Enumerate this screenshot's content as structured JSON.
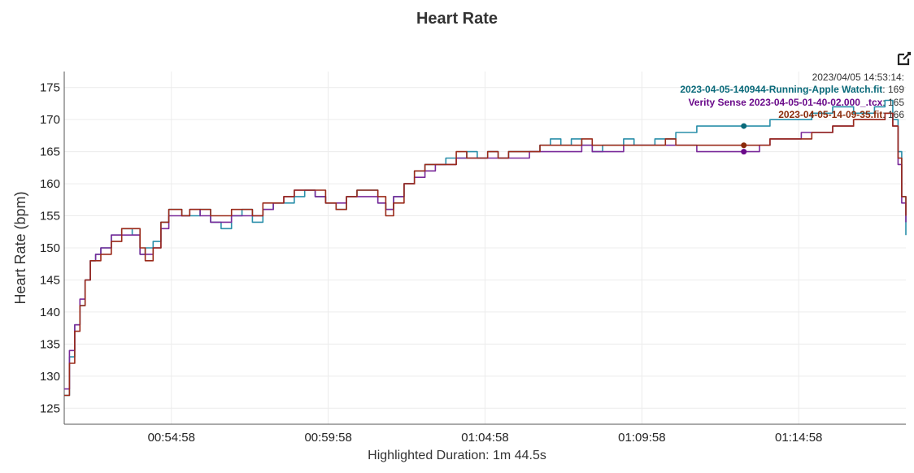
{
  "chart_data": {
    "type": "line",
    "title": "Heart Rate",
    "ylabel": "Heart Rate (bpm)",
    "xlabel": "Highlighted Duration: 1m 44.5s",
    "xlim": [
      0,
      1610
    ],
    "ylim": [
      122.5,
      177.5
    ],
    "x_ticks": [
      "00:54:58",
      "00:59:58",
      "01:04:58",
      "01:09:58",
      "01:14:58"
    ],
    "x_tick_positions": [
      205,
      505,
      805,
      1105,
      1405
    ],
    "y_ticks": [
      125,
      130,
      135,
      140,
      145,
      150,
      155,
      160,
      165,
      170,
      175
    ],
    "grid": true,
    "hover": {
      "timestamp": "2023/04/05 14:53:14:",
      "x": 1300,
      "entries": [
        {
          "name": "2023-04-05-140944-Running-Apple Watch.fit",
          "value": "169",
          "color": "#0a6a7a"
        },
        {
          "name": "Verity Sense 2023-04-05-01-40-02.000_.tcx",
          "value": "165",
          "color": "#6a0a8a"
        },
        {
          "name": "2023-04-05-14-09-35.fit",
          "value": "166",
          "color": "#8a2a0a"
        }
      ]
    },
    "series": [
      {
        "name": "2023-04-05-140944-Running-Apple Watch.fit",
        "color": "#2a8faa",
        "x": [
          0,
          10,
          20,
          30,
          40,
          50,
          60,
          70,
          90,
          110,
          130,
          145,
          155,
          170,
          185,
          200,
          215,
          225,
          240,
          260,
          280,
          300,
          320,
          340,
          360,
          380,
          400,
          420,
          440,
          460,
          480,
          500,
          520,
          540,
          560,
          580,
          600,
          615,
          630,
          650,
          670,
          690,
          710,
          730,
          750,
          770,
          790,
          810,
          830,
          850,
          870,
          890,
          910,
          930,
          950,
          970,
          990,
          1010,
          1030,
          1050,
          1070,
          1090,
          1110,
          1130,
          1150,
          1170,
          1190,
          1210,
          1230,
          1250,
          1270,
          1290,
          1310,
          1330,
          1350,
          1370,
          1390,
          1410,
          1430,
          1450,
          1470,
          1490,
          1510,
          1530,
          1550,
          1570,
          1585,
          1595,
          1602,
          1610
        ],
        "y": [
          127,
          133,
          138,
          141,
          145,
          148,
          149,
          150,
          152,
          153,
          152,
          149,
          150,
          151,
          154,
          156,
          156,
          155,
          155,
          156,
          154,
          153,
          155,
          156,
          154,
          156,
          157,
          157,
          158,
          159,
          158,
          157,
          156,
          158,
          159,
          159,
          157,
          156,
          158,
          160,
          162,
          163,
          163,
          164,
          164,
          165,
          164,
          165,
          164,
          165,
          165,
          165,
          166,
          167,
          166,
          167,
          166,
          165,
          166,
          166,
          167,
          166,
          166,
          167,
          167,
          168,
          168,
          169,
          169,
          169,
          169,
          169,
          169,
          169,
          170,
          170,
          170,
          170,
          171,
          171,
          172,
          172,
          171,
          171,
          172,
          173,
          170,
          165,
          158,
          152
        ]
      },
      {
        "name": "Verity Sense 2023-04-05-01-40-02.000_.tcx",
        "color": "#7a2a9a",
        "x": [
          0,
          10,
          20,
          30,
          40,
          50,
          60,
          70,
          90,
          110,
          130,
          145,
          155,
          170,
          185,
          200,
          215,
          225,
          240,
          260,
          280,
          300,
          320,
          340,
          360,
          380,
          400,
          420,
          440,
          460,
          480,
          500,
          520,
          540,
          560,
          580,
          600,
          615,
          630,
          650,
          670,
          690,
          710,
          730,
          750,
          770,
          790,
          810,
          830,
          850,
          870,
          890,
          910,
          930,
          950,
          970,
          990,
          1010,
          1030,
          1050,
          1070,
          1090,
          1110,
          1130,
          1150,
          1170,
          1190,
          1210,
          1230,
          1250,
          1270,
          1290,
          1310,
          1330,
          1350,
          1370,
          1390,
          1410,
          1430,
          1450,
          1470,
          1490,
          1510,
          1530,
          1550,
          1570,
          1585,
          1595,
          1602,
          1610
        ],
        "y": [
          128,
          134,
          138,
          142,
          145,
          148,
          149,
          150,
          152,
          152,
          152,
          149,
          149,
          150,
          153,
          155,
          155,
          155,
          156,
          155,
          154,
          154,
          155,
          155,
          155,
          156,
          157,
          158,
          159,
          159,
          158,
          157,
          157,
          158,
          158,
          158,
          157,
          156,
          158,
          160,
          161,
          162,
          163,
          163,
          164,
          164,
          164,
          164,
          164,
          164,
          164,
          165,
          165,
          165,
          165,
          165,
          166,
          165,
          165,
          165,
          166,
          166,
          166,
          166,
          166,
          166,
          166,
          165,
          165,
          165,
          165,
          165,
          165,
          166,
          167,
          167,
          167,
          168,
          168,
          168,
          169,
          169,
          170,
          170,
          170,
          171,
          169,
          163,
          157,
          154
        ]
      },
      {
        "name": "2023-04-05-14-09-35.fit",
        "color": "#9a2a1a",
        "x": [
          0,
          10,
          20,
          30,
          40,
          50,
          60,
          70,
          90,
          110,
          130,
          145,
          155,
          170,
          185,
          200,
          215,
          225,
          240,
          260,
          280,
          300,
          320,
          340,
          360,
          380,
          400,
          420,
          440,
          460,
          480,
          500,
          520,
          540,
          560,
          580,
          600,
          615,
          630,
          650,
          670,
          690,
          710,
          730,
          750,
          770,
          790,
          810,
          830,
          850,
          870,
          890,
          910,
          930,
          950,
          970,
          990,
          1010,
          1030,
          1050,
          1070,
          1090,
          1110,
          1130,
          1150,
          1170,
          1190,
          1210,
          1230,
          1250,
          1270,
          1290,
          1310,
          1330,
          1350,
          1370,
          1390,
          1410,
          1430,
          1450,
          1470,
          1490,
          1510,
          1530,
          1550,
          1570,
          1585,
          1595,
          1602,
          1610
        ],
        "y": [
          127,
          132,
          137,
          141,
          145,
          148,
          148,
          149,
          151,
          153,
          153,
          150,
          148,
          150,
          154,
          156,
          156,
          155,
          156,
          156,
          155,
          155,
          156,
          156,
          155,
          157,
          157,
          158,
          159,
          159,
          159,
          157,
          156,
          158,
          159,
          159,
          158,
          155,
          157,
          160,
          162,
          163,
          163,
          163,
          165,
          164,
          164,
          165,
          164,
          165,
          165,
          165,
          166,
          166,
          166,
          166,
          167,
          166,
          166,
          166,
          166,
          166,
          166,
          166,
          167,
          166,
          166,
          166,
          166,
          166,
          166,
          166,
          166,
          166,
          167,
          167,
          167,
          167,
          168,
          168,
          169,
          169,
          170,
          170,
          170,
          171,
          169,
          164,
          158,
          155
        ]
      }
    ]
  }
}
